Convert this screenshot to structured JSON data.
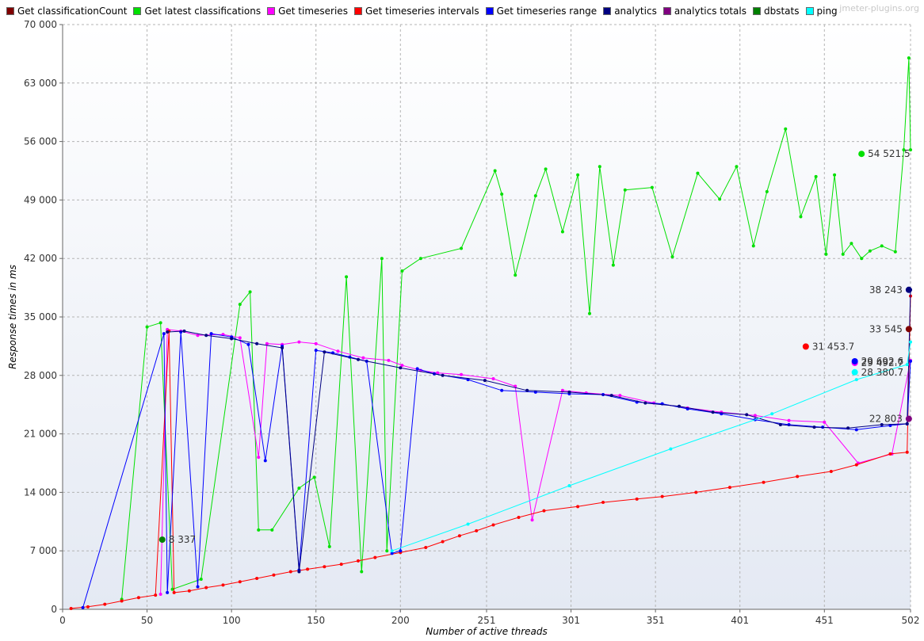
{
  "watermark": "jmeter-plugins.org",
  "chart_data": {
    "type": "line",
    "title": "",
    "xlabel": "Number of active threads",
    "ylabel": "Response times in ms",
    "xlim": [
      0,
      502
    ],
    "ylim": [
      0,
      70000
    ],
    "x_ticks": [
      "0",
      "50",
      "100",
      "150",
      "200",
      "251",
      "301",
      "351",
      "401",
      "451",
      "502"
    ],
    "y_ticks": [
      "0",
      "7 000",
      "14 000",
      "21 000",
      "28 000",
      "35 000",
      "42 000",
      "49 000",
      "56 000",
      "63 000",
      "70 000"
    ],
    "grid": true,
    "legend": "top",
    "series": [
      {
        "name": "Get classificationCount",
        "color": "#800000",
        "x": [],
        "y": [],
        "end_marker": {
          "x": 501,
          "y": 33545,
          "label": "33 545"
        }
      },
      {
        "name": "Get latest classifications",
        "color": "#00e000",
        "x": [
          35,
          50,
          58,
          65,
          82,
          105,
          111,
          116,
          124,
          140,
          149,
          158,
          168,
          177,
          189,
          192,
          201,
          212,
          236,
          256,
          260,
          268,
          280,
          286,
          296,
          305,
          312,
          318,
          326,
          333,
          349,
          361,
          376,
          389,
          399,
          409,
          417,
          428,
          437,
          446,
          452,
          457,
          462,
          467,
          473,
          478,
          485,
          493,
          498,
          501,
          502
        ],
        "y": [
          1200,
          33800,
          34300,
          2400,
          3600,
          36500,
          38000,
          9500,
          9500,
          14500,
          15800,
          7500,
          39800,
          4500,
          42000,
          7000,
          40500,
          42000,
          43200,
          52500,
          49700,
          40000,
          49500,
          52700,
          45200,
          52000,
          35400,
          53000,
          41200,
          50200,
          50500,
          42200,
          52200,
          49100,
          53000,
          43500,
          50000,
          57500,
          47000,
          51800,
          42500,
          52000,
          42500,
          43800,
          42000,
          42900,
          43500,
          42800,
          55000,
          66000,
          55000
        ],
        "end_marker": {
          "x": 473,
          "y": 54521.5,
          "label": "54 521.5"
        }
      },
      {
        "name": "Get timeseries",
        "color": "#ff00ff",
        "x": [
          58,
          62,
          70,
          80,
          95,
          105,
          116,
          121,
          130,
          140,
          150,
          163,
          178,
          193,
          201,
          212,
          222,
          236,
          255,
          268,
          278,
          296,
          310,
          330,
          350,
          370,
          390,
          410,
          430,
          451,
          471,
          491,
          502
        ],
        "y": [
          1800,
          33500,
          33300,
          32800,
          32900,
          32500,
          18200,
          31800,
          31700,
          32000,
          31800,
          30900,
          30100,
          29800,
          29200,
          28600,
          28300,
          28100,
          27600,
          26700,
          10700,
          26200,
          25900,
          25600,
          24700,
          24100,
          23600,
          23200,
          22600,
          22400,
          17500,
          18600,
          29800
        ],
        "end_marker": {
          "x": 469,
          "y": 29492.7,
          "label": "29 492.7"
        }
      },
      {
        "name": "Get timeseries intervals",
        "color": "#ff0000",
        "x": [
          5,
          15,
          25,
          35,
          45,
          55,
          63,
          66,
          75,
          85,
          95,
          105,
          115,
          125,
          135,
          145,
          155,
          165,
          175,
          185,
          200,
          215,
          225,
          235,
          245,
          255,
          270,
          285,
          305,
          320,
          340,
          355,
          375,
          395,
          415,
          435,
          455,
          470,
          490,
          500,
          502
        ],
        "y": [
          100,
          300,
          600,
          1000,
          1400,
          1700,
          33300,
          2000,
          2200,
          2600,
          2900,
          3300,
          3700,
          4100,
          4500,
          4800,
          5100,
          5400,
          5800,
          6200,
          6800,
          7400,
          8100,
          8800,
          9400,
          10100,
          11000,
          11800,
          12300,
          12800,
          13200,
          13500,
          14000,
          14600,
          15200,
          15900,
          16500,
          17300,
          18600,
          18800,
          37500
        ],
        "end_marker": {
          "x": 440,
          "y": 31453.7,
          "label": "31 453.7"
        }
      },
      {
        "name": "Get timeseries range",
        "color": "#0000ff",
        "x": [
          12,
          60,
          62,
          70,
          80,
          88,
          100,
          110,
          120,
          130,
          140,
          150,
          160,
          170,
          180,
          195,
          200,
          210,
          220,
          240,
          260,
          280,
          300,
          320,
          340,
          355,
          370,
          390,
          410,
          430,
          450,
          470,
          490,
          500,
          502
        ],
        "y": [
          200,
          33000,
          2000,
          33200,
          2700,
          33000,
          32600,
          31700,
          17800,
          31500,
          4700,
          31000,
          30700,
          30200,
          29700,
          6700,
          7000,
          28800,
          28200,
          27500,
          26200,
          26000,
          25800,
          25700,
          24800,
          24600,
          24000,
          23400,
          22700,
          22100,
          21800,
          21500,
          22000,
          22200,
          29700
        ],
        "end_marker": {
          "x": 469,
          "y": 29692.6,
          "label": "29 692.6"
        }
      },
      {
        "name": "analytics",
        "color": "#000080",
        "x": [
          62,
          72,
          85,
          100,
          115,
          130,
          140,
          155,
          175,
          200,
          225,
          250,
          275,
          300,
          325,
          345,
          365,
          385,
          405,
          425,
          445,
          465,
          485,
          500,
          502
        ],
        "y": [
          33200,
          33300,
          32800,
          32400,
          31800,
          31300,
          4500,
          30800,
          29900,
          28900,
          28000,
          27400,
          26200,
          26000,
          25600,
          24700,
          24300,
          23600,
          23300,
          22100,
          21800,
          21700,
          22100,
          22200,
          38243
        ],
        "end_marker": {
          "x": 501,
          "y": 38243,
          "label": "38 243"
        }
      },
      {
        "name": "analytics totals",
        "color": "#800080",
        "x": [],
        "y": [],
        "end_marker": {
          "x": 501,
          "y": 22803,
          "label": "22 803"
        }
      },
      {
        "name": "dbstats",
        "color": "#008000",
        "x": [],
        "y": [],
        "end_marker": {
          "x": 59,
          "y": 8337,
          "label": "8 337"
        }
      },
      {
        "name": "ping",
        "color": "#00ffff",
        "x": [
          195,
          240,
          300,
          360,
          420,
          470,
          500,
          502
        ],
        "y": [
          7000,
          10200,
          14800,
          19200,
          23400,
          27500,
          29300,
          32000
        ],
        "end_marker": {
          "x": 469,
          "y": 28380.7,
          "label": "28 380.7"
        }
      }
    ]
  }
}
